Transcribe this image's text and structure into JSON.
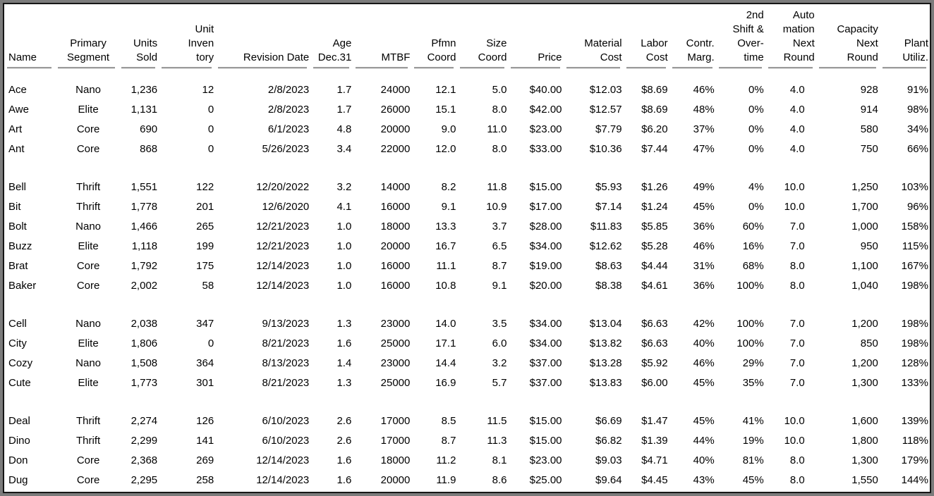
{
  "report": {
    "colors": {
      "frame_outer": "#7b7b7b",
      "frame_inner_border": "#161616",
      "background": "#ffffff",
      "text": "#000000",
      "header_rule": "#9a9a9a"
    },
    "table": {
      "columns": [
        {
          "id": "name",
          "header_lines": [
            "Name"
          ],
          "align": "left"
        },
        {
          "id": "segment",
          "header_lines": [
            "Primary",
            "Segment"
          ],
          "align": "center"
        },
        {
          "id": "units-sold",
          "header_lines": [
            "Units",
            "Sold"
          ],
          "align": "right"
        },
        {
          "id": "unit-inventory",
          "header_lines": [
            "Unit",
            "Inven",
            "tory"
          ],
          "align": "right"
        },
        {
          "id": "revision-date",
          "header_lines": [
            "Revision Date"
          ],
          "align": "right"
        },
        {
          "id": "age",
          "header_lines": [
            "Age",
            "Dec.31"
          ],
          "align": "right"
        },
        {
          "id": "mtbf",
          "header_lines": [
            "MTBF"
          ],
          "align": "right"
        },
        {
          "id": "pfmn-coord",
          "header_lines": [
            "Pfmn",
            "Coord"
          ],
          "align": "right"
        },
        {
          "id": "size-coord",
          "header_lines": [
            "Size",
            "Coord"
          ],
          "align": "right"
        },
        {
          "id": "price",
          "header_lines": [
            "Price"
          ],
          "align": "right"
        },
        {
          "id": "material-cost",
          "header_lines": [
            "Material",
            "Cost"
          ],
          "align": "right"
        },
        {
          "id": "labor-cost",
          "header_lines": [
            "Labor",
            "Cost"
          ],
          "align": "right"
        },
        {
          "id": "contr-marg",
          "header_lines": [
            "Contr.",
            "Marg."
          ],
          "align": "right"
        },
        {
          "id": "second-shift",
          "header_lines": [
            "2nd",
            "Shift &",
            "Over-",
            "time"
          ],
          "align": "right"
        },
        {
          "id": "automation",
          "header_lines": [
            "Auto",
            "mation",
            "Next",
            "Round"
          ],
          "align": "right"
        },
        {
          "id": "capacity",
          "header_lines": [
            "Capacity",
            "Next",
            "Round"
          ],
          "align": "right"
        },
        {
          "id": "plant-utiliz",
          "header_lines": [
            "Plant",
            "Utiliz."
          ],
          "align": "right"
        }
      ],
      "groups": [
        {
          "rows": [
            [
              "Ace",
              "Nano",
              "1,236",
              "12",
              "2/8/2023",
              "1.7",
              "24000",
              "12.1",
              "5.0",
              "$40.00",
              "$12.03",
              "$8.69",
              "46%",
              "0%",
              "4.0",
              "928",
              "91%"
            ],
            [
              "Awe",
              "Elite",
              "1,131",
              "0",
              "2/8/2023",
              "1.7",
              "26000",
              "15.1",
              "8.0",
              "$42.00",
              "$12.57",
              "$8.69",
              "48%",
              "0%",
              "4.0",
              "914",
              "98%"
            ],
            [
              "Art",
              "Core",
              "690",
              "0",
              "6/1/2023",
              "4.8",
              "20000",
              "9.0",
              "11.0",
              "$23.00",
              "$7.79",
              "$6.20",
              "37%",
              "0%",
              "4.0",
              "580",
              "34%"
            ],
            [
              "Ant",
              "Core",
              "868",
              "0",
              "5/26/2023",
              "3.4",
              "22000",
              "12.0",
              "8.0",
              "$33.00",
              "$10.36",
              "$7.44",
              "47%",
              "0%",
              "4.0",
              "750",
              "66%"
            ]
          ]
        },
        {
          "rows": [
            [
              "Bell",
              "Thrift",
              "1,551",
              "122",
              "12/20/2022",
              "3.2",
              "14000",
              "8.2",
              "11.8",
              "$15.00",
              "$5.93",
              "$1.26",
              "49%",
              "4%",
              "10.0",
              "1,250",
              "103%"
            ],
            [
              "Bit",
              "Thrift",
              "1,778",
              "201",
              "12/6/2020",
              "4.1",
              "16000",
              "9.1",
              "10.9",
              "$17.00",
              "$7.14",
              "$1.24",
              "45%",
              "0%",
              "10.0",
              "1,700",
              "96%"
            ],
            [
              "Bolt",
              "Nano",
              "1,466",
              "265",
              "12/21/2023",
              "1.0",
              "18000",
              "13.3",
              "3.7",
              "$28.00",
              "$11.83",
              "$5.85",
              "36%",
              "60%",
              "7.0",
              "1,000",
              "158%"
            ],
            [
              "Buzz",
              "Elite",
              "1,118",
              "199",
              "12/21/2023",
              "1.0",
              "20000",
              "16.7",
              "6.5",
              "$34.00",
              "$12.62",
              "$5.28",
              "46%",
              "16%",
              "7.0",
              "950",
              "115%"
            ],
            [
              "Brat",
              "Core",
              "1,792",
              "175",
              "12/14/2023",
              "1.0",
              "16000",
              "11.1",
              "8.7",
              "$19.00",
              "$8.63",
              "$4.44",
              "31%",
              "68%",
              "8.0",
              "1,100",
              "167%"
            ],
            [
              "Baker",
              "Core",
              "2,002",
              "58",
              "12/14/2023",
              "1.0",
              "16000",
              "10.8",
              "9.1",
              "$20.00",
              "$8.38",
              "$4.61",
              "36%",
              "100%",
              "8.0",
              "1,040",
              "198%"
            ]
          ]
        },
        {
          "rows": [
            [
              "Cell",
              "Nano",
              "2,038",
              "347",
              "9/13/2023",
              "1.3",
              "23000",
              "14.0",
              "3.5",
              "$34.00",
              "$13.04",
              "$6.63",
              "42%",
              "100%",
              "7.0",
              "1,200",
              "198%"
            ],
            [
              "City",
              "Elite",
              "1,806",
              "0",
              "8/21/2023",
              "1.6",
              "25000",
              "17.1",
              "6.0",
              "$34.00",
              "$13.82",
              "$6.63",
              "40%",
              "100%",
              "7.0",
              "850",
              "198%"
            ],
            [
              "Cozy",
              "Nano",
              "1,508",
              "364",
              "8/13/2023",
              "1.4",
              "23000",
              "14.4",
              "3.2",
              "$37.00",
              "$13.28",
              "$5.92",
              "46%",
              "29%",
              "7.0",
              "1,200",
              "128%"
            ],
            [
              "Cute",
              "Elite",
              "1,773",
              "301",
              "8/21/2023",
              "1.3",
              "25000",
              "16.9",
              "5.7",
              "$37.00",
              "$13.83",
              "$6.00",
              "45%",
              "35%",
              "7.0",
              "1,300",
              "133%"
            ]
          ]
        },
        {
          "rows": [
            [
              "Deal",
              "Thrift",
              "2,274",
              "126",
              "6/10/2023",
              "2.6",
              "17000",
              "8.5",
              "11.5",
              "$15.00",
              "$6.69",
              "$1.47",
              "45%",
              "41%",
              "10.0",
              "1,600",
              "139%"
            ],
            [
              "Dino",
              "Thrift",
              "2,299",
              "141",
              "6/10/2023",
              "2.6",
              "17000",
              "8.7",
              "11.3",
              "$15.00",
              "$6.82",
              "$1.39",
              "44%",
              "19%",
              "10.0",
              "1,800",
              "118%"
            ],
            [
              "Don",
              "Core",
              "2,368",
              "269",
              "12/14/2023",
              "1.6",
              "18000",
              "11.2",
              "8.1",
              "$23.00",
              "$9.03",
              "$4.71",
              "40%",
              "81%",
              "8.0",
              "1,300",
              "179%"
            ],
            [
              "Dug",
              "Core",
              "2,295",
              "258",
              "12/14/2023",
              "1.6",
              "20000",
              "11.9",
              "8.6",
              "$25.00",
              "$9.64",
              "$4.45",
              "43%",
              "45%",
              "8.0",
              "1,550",
              "144%"
            ]
          ]
        }
      ]
    }
  }
}
